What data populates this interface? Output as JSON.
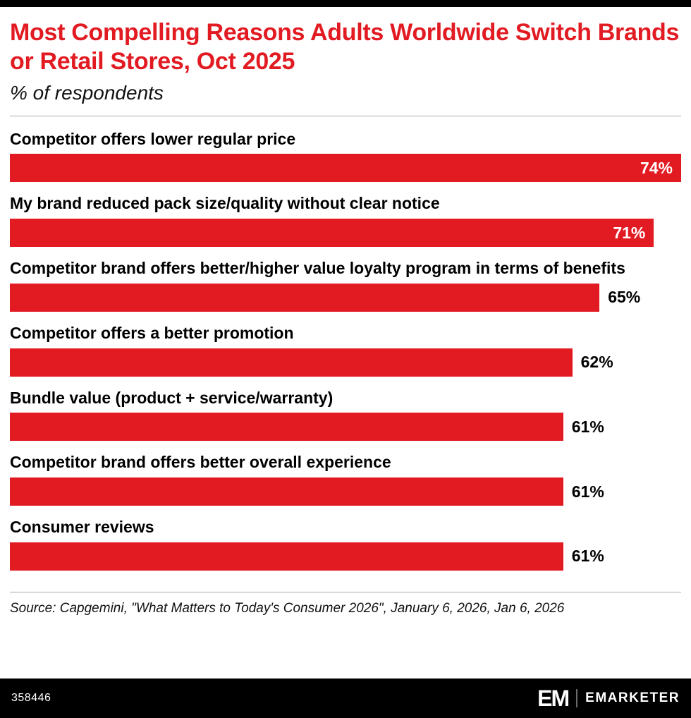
{
  "header": {
    "title": "Most Compelling Reasons Adults Worldwide Switch Brands or Retail Stores, Oct 2025",
    "subtitle": "% of respondents"
  },
  "chart_data": {
    "type": "bar",
    "orientation": "horizontal",
    "title": "Most Compelling Reasons Adults Worldwide Switch Brands or Retail Stores, Oct 2025",
    "subtitle": "% of respondents",
    "categories": [
      "Competitor offers lower regular price",
      "My brand reduced pack size/quality without clear notice",
      "Competitor brand offers better/higher value loyalty program in terms of benefits",
      "Competitor offers a better promotion",
      "Bundle value (product + service/warranty)",
      "Competitor brand offers better overall experience",
      "Consumer reviews"
    ],
    "values": [
      74,
      71,
      65,
      62,
      61,
      61,
      61
    ],
    "value_labels": [
      "74%",
      "71%",
      "65%",
      "62%",
      "61%",
      "61%",
      "61%"
    ],
    "unit": "%",
    "xlim": [
      0,
      74
    ],
    "grid": false,
    "legend": "none",
    "bar_color": "#e21a22"
  },
  "footer": {
    "source": "Source: Capgemini, \"What Matters to Today's Consumer 2026\", January 6, 2026, Jan 6, 2026",
    "chart_id": "358446",
    "brand_mark": "EM",
    "brand_name": "EMARKETER"
  },
  "colors": {
    "accent_red": "#e21a22",
    "footer_bg": "#000000",
    "text": "#000000",
    "divider": "#a9a9a9"
  }
}
